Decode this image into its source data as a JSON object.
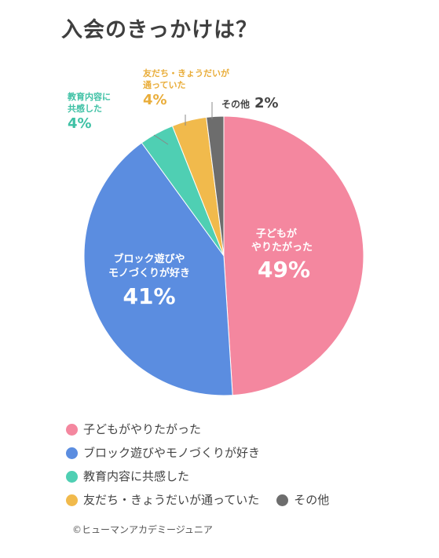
{
  "title": "入会のきっかけは？",
  "chart_data": {
    "type": "pie",
    "title": "入会のきっかけは？",
    "categories": [
      "子どもがやりたがった",
      "ブロック遊びやモノづくりが好き",
      "教育内容に共感した",
      "友だち・きょうだいが通っていた",
      "その他"
    ],
    "values": [
      49,
      41,
      4,
      4,
      2
    ],
    "colors": [
      "#f4879f",
      "#5b8de0",
      "#4fcfb3",
      "#f1ba4c",
      "#6d6d6d"
    ],
    "slice_labels": [
      {
        "name_lines": [
          "子どもが",
          "やりたがった"
        ],
        "value": "49%"
      },
      {
        "name_lines": [
          "ブロック遊びや",
          "モノづくりが好き"
        ],
        "value": "41%"
      },
      {
        "name_lines": [
          "教育内容に",
          "共感した"
        ],
        "value": "4%"
      },
      {
        "name_lines": [
          "友だち・きょうだいが",
          "通っていた"
        ],
        "value": "4%"
      },
      {
        "name_lines": [
          "その他"
        ],
        "value": "2%"
      }
    ],
    "legend_position": "bottom"
  },
  "credit": "©ヒューマンアカデミージュニア"
}
